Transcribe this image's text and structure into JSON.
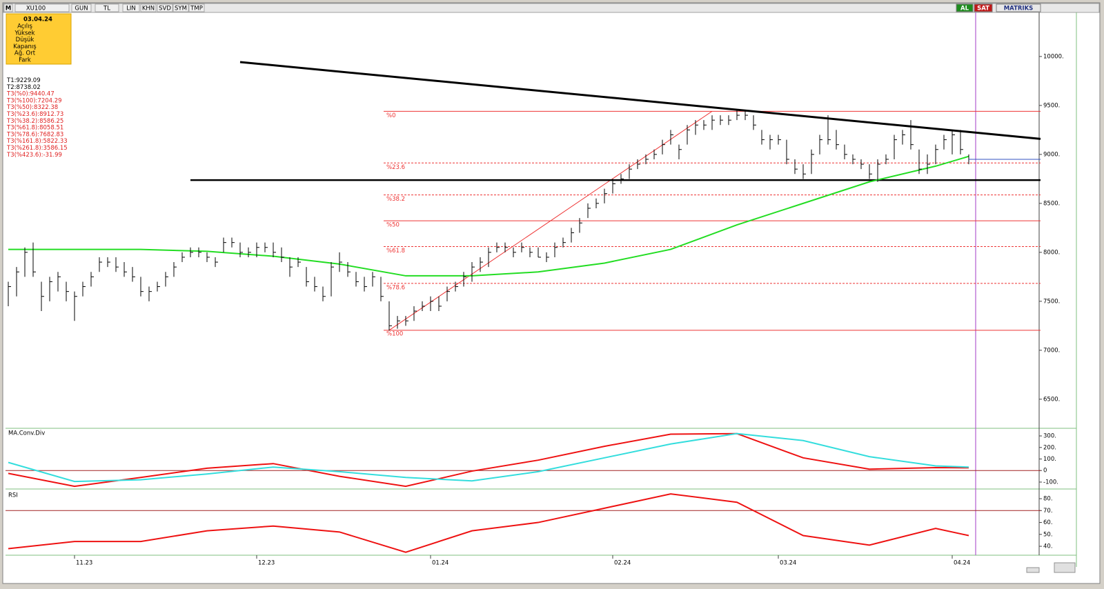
{
  "toolbar": {
    "left": [
      "M",
      "XU100",
      "GUN",
      "TL",
      "LIN",
      "KHN",
      "SVD",
      "SYM",
      "TMP"
    ],
    "right": [
      "AL",
      "SAT",
      "MATRIKS"
    ]
  },
  "info_box": {
    "date": "03.04.24",
    "rows": [
      "Açılış",
      "Yüksek",
      "Düşük",
      "Kapanış",
      "Ağ. Ort",
      "Fark"
    ]
  },
  "legend": [
    {
      "name": "T1:",
      "value": 9229.09
    },
    {
      "name": "T2:",
      "value": 8738.02
    },
    {
      "name": "T3(%0):",
      "value": 9440.47
    },
    {
      "name": "T3(%100):",
      "value": 7204.29
    },
    {
      "name": "T3(%50):",
      "value": 8322.38
    },
    {
      "name": "T3(%23.6):",
      "value": 8912.73
    },
    {
      "name": "T3(%38.2):",
      "value": 8586.25
    },
    {
      "name": "T3(%61.8):",
      "value": 8058.51
    },
    {
      "name": "T3(%78.6):",
      "value": 7682.83
    },
    {
      "name": "T3(%161.8):",
      "value": 5822.33
    },
    {
      "name": "T3(%261.8):",
      "value": 3586.15
    },
    {
      "name": "T3(%423.6):",
      "value": -31.99
    }
  ],
  "fib_labels": [
    "%0",
    "%100",
    "%50",
    "%23.6",
    "%38.2",
    "%61.8",
    "%78.6"
  ],
  "fib_dashed": [
    false,
    false,
    false,
    true,
    true,
    true,
    true
  ],
  "xticks": [
    {
      "value": 8,
      "label": "11.23"
    },
    {
      "value": 30,
      "label": "12.23"
    },
    {
      "value": 51,
      "label": "01.24"
    },
    {
      "value": 73,
      "label": "02.24"
    },
    {
      "value": 93,
      "label": "03.24"
    },
    {
      "value": 114,
      "label": "04.24"
    }
  ],
  "price_panel": {
    "ylim": [
      6210,
      10450
    ],
    "yticks": [
      {
        "value": 6500,
        "label": "6500."
      },
      {
        "value": 7000,
        "label": "7000."
      },
      {
        "value": 7500,
        "label": "7500."
      },
      {
        "value": 8000,
        "label": "8000."
      },
      {
        "value": 8500,
        "label": "8500."
      },
      {
        "value": 9000,
        "label": "9000."
      },
      {
        "value": 9500,
        "label": "9500."
      },
      {
        "value": 10000,
        "label": "10000."
      }
    ],
    "high": [
      7700,
      7850,
      8050,
      8100,
      7700,
      7750,
      7800,
      7700,
      7600,
      7700,
      7800,
      7950,
      7950,
      7950,
      7900,
      7850,
      7750,
      7650,
      7700,
      7800,
      7900,
      8000,
      8050,
      8050,
      8000,
      7950,
      8150,
      8150,
      8100,
      8050,
      8100,
      8100,
      8100,
      8050,
      7950,
      7950,
      7850,
      7750,
      7650,
      7900,
      8000,
      7900,
      7800,
      7750,
      7800,
      7750,
      7500,
      7350,
      7350,
      7450,
      7500,
      7550,
      7550,
      7650,
      7700,
      7800,
      7900,
      7950,
      8050,
      8100,
      8100,
      8050,
      8100,
      8050,
      8050,
      8000,
      8100,
      8150,
      8250,
      8350,
      8500,
      8550,
      8650,
      8750,
      8800,
      8900,
      8950,
      9000,
      9050,
      9150,
      9250,
      9100,
      9300,
      9350,
      9350,
      9400,
      9400,
      9400,
      9450,
      9450,
      9400,
      9250,
      9200,
      9200,
      9150,
      8950,
      8900,
      9050,
      9200,
      9400,
      9250,
      9100,
      9000,
      8950,
      8900,
      8950,
      9000,
      9200,
      9250,
      9350,
      9050,
      9000,
      9100,
      9200,
      9250,
      9250,
      9000
    ],
    "low": [
      7450,
      7550,
      7750,
      7750,
      7400,
      7500,
      7600,
      7500,
      7300,
      7550,
      7650,
      7800,
      7850,
      7800,
      7750,
      7700,
      7550,
      7500,
      7600,
      7650,
      7750,
      7900,
      7950,
      7950,
      7900,
      7850,
      8000,
      8050,
      7950,
      7950,
      7950,
      8000,
      7950,
      7900,
      7750,
      7850,
      7650,
      7600,
      7500,
      7550,
      7800,
      7750,
      7650,
      7600,
      7650,
      7500,
      7200,
      7220,
      7250,
      7300,
      7400,
      7400,
      7400,
      7500,
      7600,
      7650,
      7700,
      7800,
      7850,
      8000,
      8000,
      7950,
      8000,
      7950,
      7950,
      7900,
      7950,
      8050,
      8100,
      8200,
      8350,
      8450,
      8500,
      8600,
      8700,
      8750,
      8850,
      8900,
      8950,
      9000,
      9100,
      8950,
      9100,
      9200,
      9250,
      9250,
      9300,
      9300,
      9350,
      9350,
      9250,
      9100,
      9050,
      9100,
      8900,
      8800,
      8750,
      8800,
      9000,
      9100,
      9050,
      8950,
      8900,
      8850,
      8750,
      8720,
      8900,
      8950,
      9100,
      9050,
      8800,
      8800,
      8900,
      9050,
      9000,
      9000,
      8900
    ],
    "close": [
      7650,
      7800,
      8000,
      7800,
      7550,
      7700,
      7750,
      7600,
      7550,
      7650,
      7750,
      7900,
      7900,
      7850,
      7800,
      7750,
      7600,
      7600,
      7650,
      7750,
      7850,
      7950,
      8000,
      8000,
      7950,
      7900,
      8100,
      8100,
      8000,
      8000,
      8050,
      8050,
      8000,
      7950,
      7850,
      7900,
      7700,
      7650,
      7550,
      7850,
      7900,
      7800,
      7700,
      7650,
      7750,
      7550,
      7250,
      7300,
      7300,
      7400,
      7450,
      7500,
      7450,
      7600,
      7650,
      7750,
      7850,
      7900,
      8000,
      8050,
      8050,
      8000,
      8050,
      8000,
      7950,
      7950,
      8050,
      8100,
      8200,
      8300,
      8450,
      8500,
      8600,
      8700,
      8750,
      8850,
      8900,
      8950,
      9000,
      9100,
      9200,
      9050,
      9250,
      9300,
      9300,
      9350,
      9350,
      9350,
      9400,
      9400,
      9300,
      9150,
      9150,
      9150,
      8950,
      8850,
      8800,
      9000,
      9150,
      9150,
      9100,
      9000,
      8950,
      8900,
      8800,
      8900,
      8950,
      9150,
      9200,
      9100,
      8850,
      8900,
      9050,
      9150,
      9200,
      9050,
      8950
    ],
    "ma": {
      "x": [
        0,
        8,
        16,
        24,
        32,
        40,
        48,
        56,
        64,
        72,
        80,
        88,
        96,
        104,
        112,
        116
      ],
      "values": [
        8030,
        8030,
        8030,
        8010,
        7960,
        7880,
        7760,
        7760,
        7800,
        7890,
        8030,
        8280,
        8500,
        8720,
        8880,
        8980
      ]
    }
  },
  "macd_panel": {
    "title": "MA.Conv.Div",
    "ylim": [
      -154,
      360
    ],
    "yticks": [
      {
        "value": -100,
        "label": "-100."
      },
      0,
      {
        "value": 100,
        "label": "100."
      },
      {
        "value": 200,
        "label": "200."
      },
      {
        "value": 300,
        "label": "300."
      }
    ],
    "x": [
      0,
      8,
      16,
      24,
      32,
      40,
      48,
      56,
      64,
      72,
      80,
      88,
      96,
      104,
      112,
      116
    ],
    "series": [
      {
        "color": "#ee1111",
        "values": [
          -25,
          -137,
          -60,
          20,
          60,
          -50,
          -137,
          -5,
          90,
          210,
          315,
          320,
          110,
          12,
          25,
          24
        ]
      },
      {
        "color": "#33dddd",
        "values": [
          70,
          -95,
          -80,
          -30,
          30,
          -10,
          -60,
          -90,
          -10,
          110,
          230,
          320,
          260,
          120,
          40,
          30
        ]
      }
    ]
  },
  "rsi_panel": {
    "title": "RSI",
    "ylim": [
      32.5,
      86.4
    ],
    "yticks": [
      {
        "value": 40,
        "label": "40."
      },
      {
        "value": 50,
        "label": "50."
      },
      {
        "value": 60,
        "label": "60."
      },
      {
        "value": 70,
        "label": "70."
      },
      {
        "value": 80,
        "label": "80."
      }
    ],
    "x": [
      0,
      8,
      16,
      24,
      32,
      40,
      48,
      56,
      64,
      72,
      80,
      88,
      96,
      104,
      112,
      116
    ],
    "color": "#ee1111",
    "values": [
      38,
      44,
      44,
      53,
      57,
      52,
      35,
      53,
      60,
      72,
      84,
      77,
      49,
      41,
      55,
      49
    ]
  }
}
